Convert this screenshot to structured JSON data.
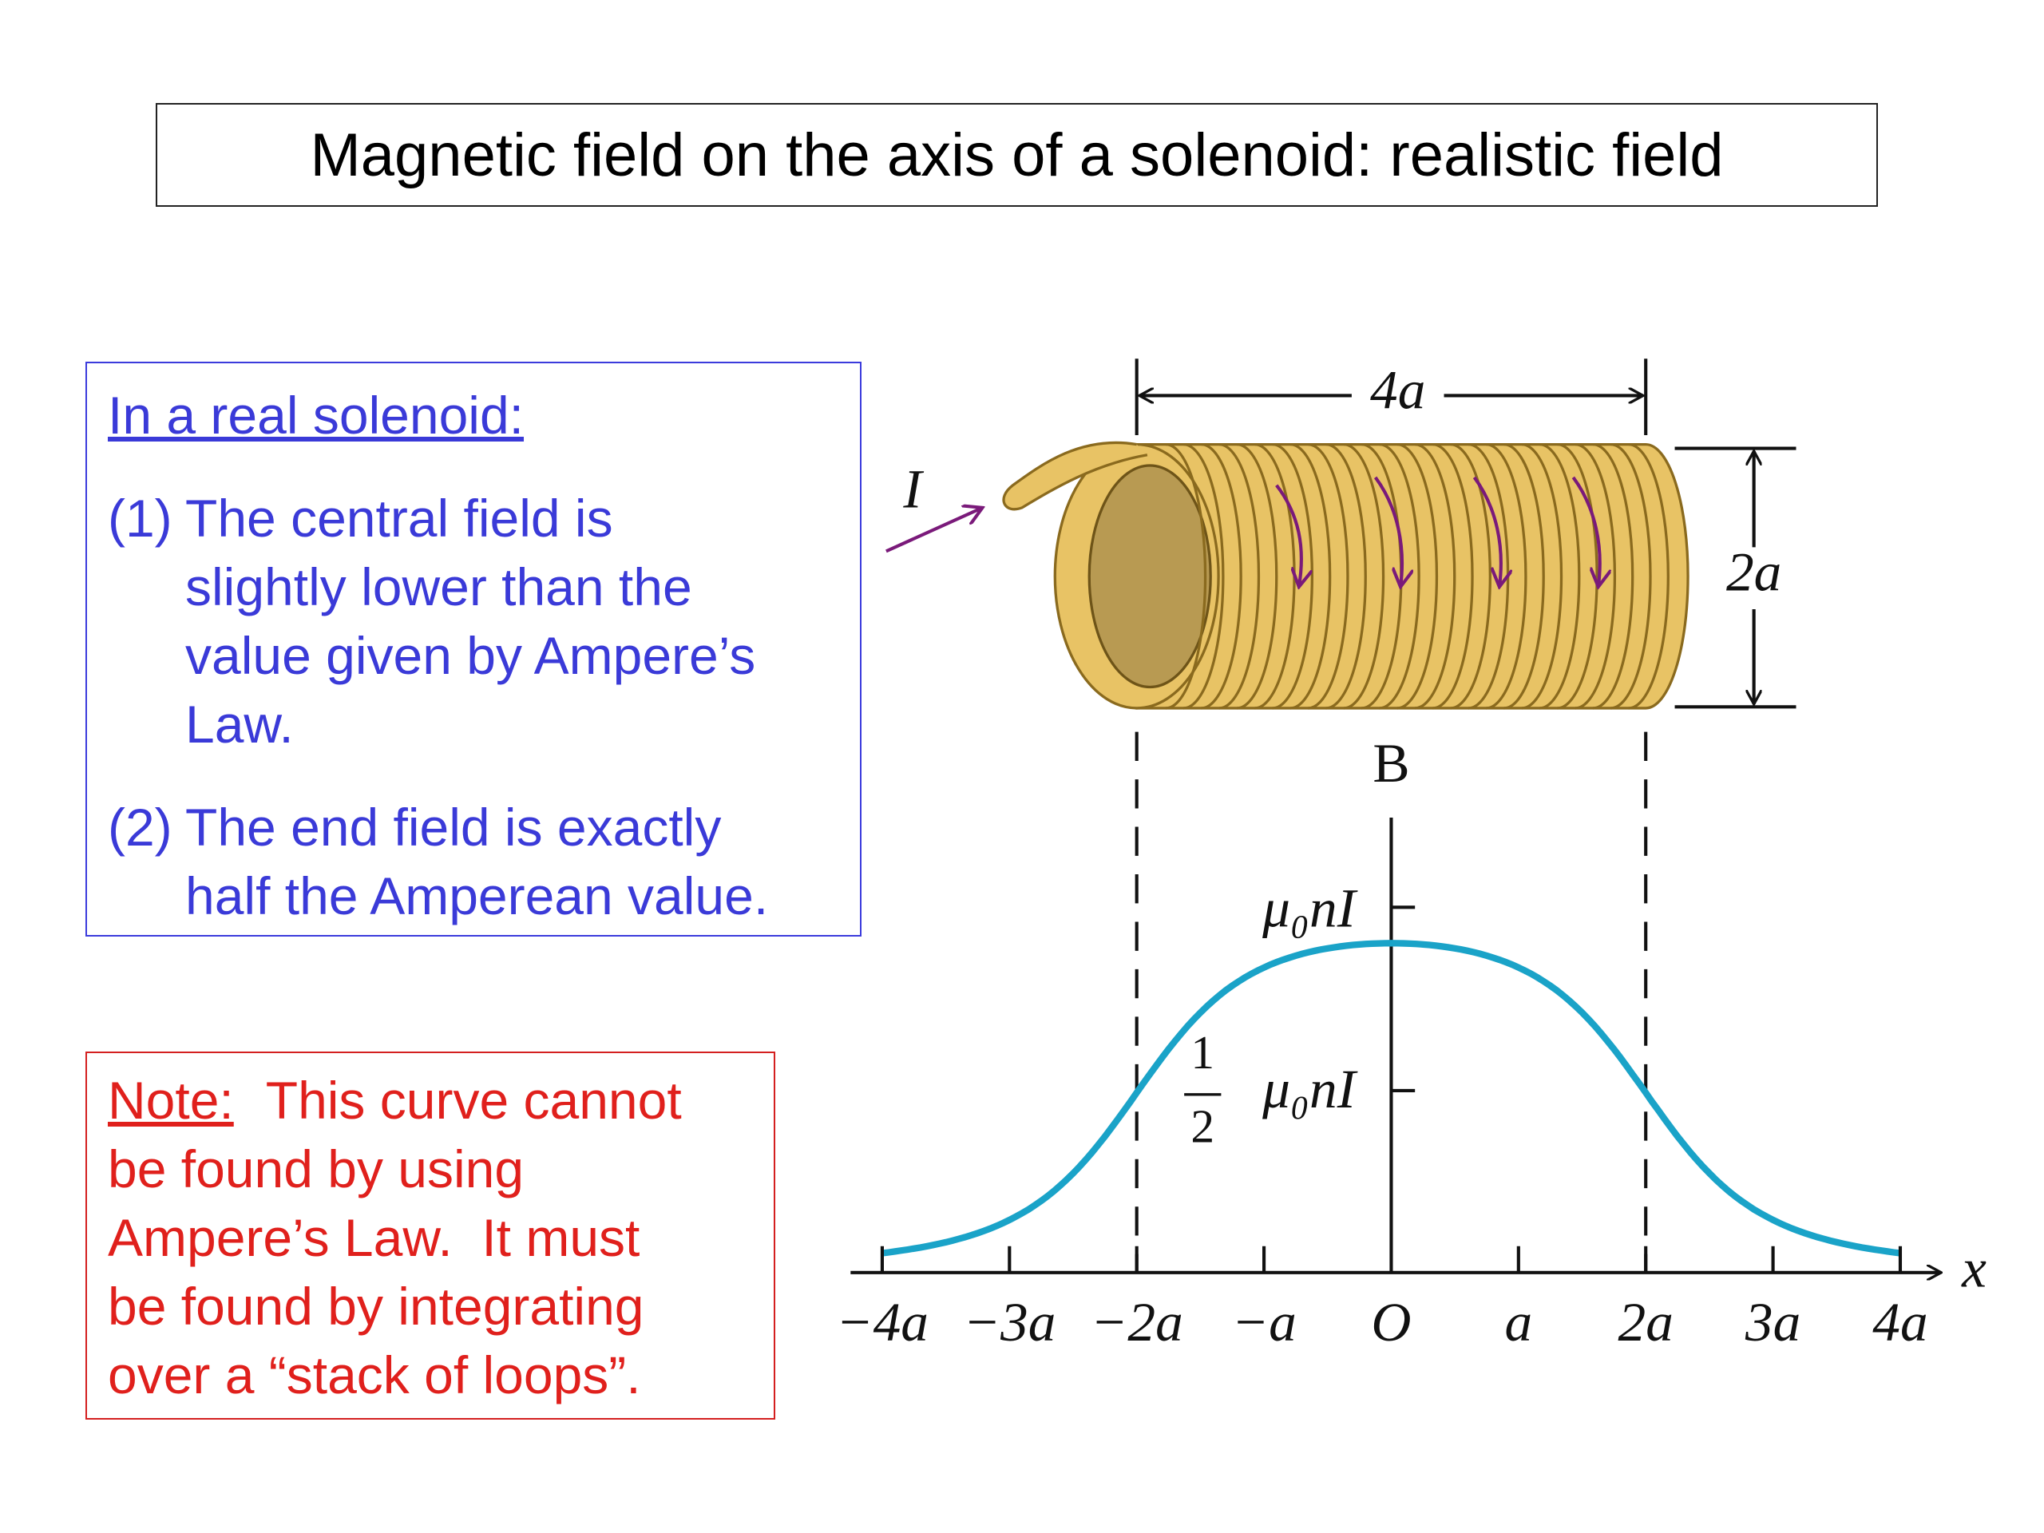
{
  "title": "Magnetic field on the axis of a solenoid: realistic field",
  "info_box": {
    "heading": "In a real solenoid:",
    "items": [
      {
        "number": "(1)",
        "lines": [
          "The central field is",
          "slightly lower than the",
          "value given by Ampere’s",
          "Law."
        ]
      },
      {
        "number": "(2)",
        "lines": [
          "The end field is exactly",
          "half the Amperean value."
        ]
      }
    ]
  },
  "note_box": {
    "label": "Note:",
    "lines": [
      "This curve cannot",
      "be found by using",
      "Ampere’s Law.  It must",
      "be found by integrating",
      "over a “stack of loops”."
    ]
  },
  "diagram": {
    "current_label": "I",
    "length_label": "4a",
    "diameter_label": "2a",
    "y_axis_label": "B",
    "x_axis_label": "x",
    "full_field_label": "μ₀nI",
    "half_field_label": {
      "numerator": "1",
      "denominator": "2",
      "text": "μ₀nI"
    },
    "x_tick_labels": [
      "−4a",
      "−3a",
      "−2a",
      "−a",
      "O",
      "a",
      "2a",
      "3a",
      "4a"
    ]
  }
}
